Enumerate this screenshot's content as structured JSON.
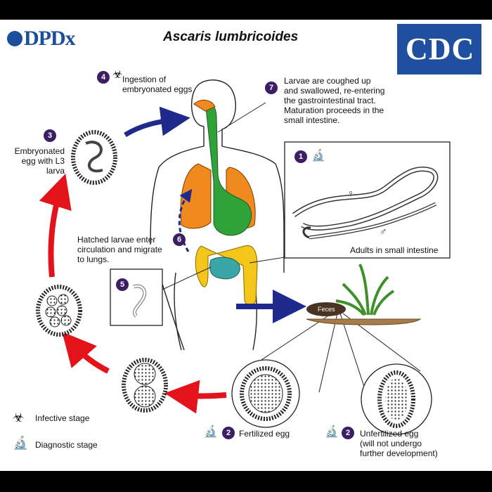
{
  "header": {
    "logo_left": "DPDx",
    "title": "Ascaris lumbricoides",
    "logo_right": "CDC"
  },
  "steps": {
    "s1": {
      "number": "1",
      "label": "Adults in small intestine"
    },
    "s2a": {
      "number": "2",
      "label": "Fertilized egg"
    },
    "s2b": {
      "number": "2",
      "label_lines": [
        "Unfertilized egg",
        "(will not undergo",
        "further development)"
      ]
    },
    "s3": {
      "number": "3",
      "label_lines": [
        "Embryonated",
        "egg with L3",
        "larva"
      ]
    },
    "s4": {
      "number": "4",
      "label_lines": [
        "Ingestion of",
        "embryonated eggs"
      ]
    },
    "s5": {
      "number": "5"
    },
    "s6": {
      "number": "6",
      "label_lines": [
        "Hatched larvae enter",
        "circulation and migrate",
        "to lungs."
      ]
    },
    "s7": {
      "number": "7",
      "label_lines": [
        "Larvae are coughed up",
        "and swallowed, re-entering",
        "the gastrointestinal tract.",
        "Maturation proceeds in the",
        "small intestine."
      ]
    }
  },
  "feces_label": "Feces",
  "sex_symbols": {
    "female": "♀",
    "male": "♂"
  },
  "legend": {
    "infective": "Infective stage",
    "diagnostic": "Diagnostic stage"
  },
  "colors": {
    "step_circle": "#3b1e63",
    "arrow_red": "#e3121b",
    "arrow_blue": "#1f2a8c",
    "lungs": "#f08a1e",
    "esophagus_stomach": "#2fa33a",
    "small_intestine": "#3aa7a7",
    "large_intestine": "#f4c51a"
  }
}
